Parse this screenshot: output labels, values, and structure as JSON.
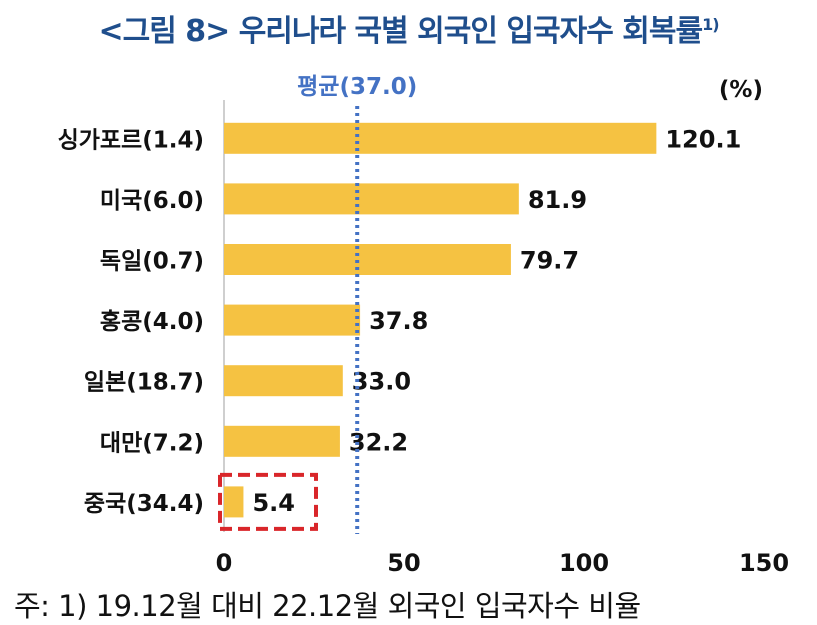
{
  "title": "<그림 8> 우리나라 국별 외국인 입국자수 회복률",
  "title_superscript": "1)",
  "note": "주: 1) 19.12월 대비 22.12월 외국인 입국자수 비율",
  "chart_data": {
    "type": "bar",
    "orientation": "horizontal",
    "unit_label": "(%)",
    "categories": [
      "싱가포르(1.4)",
      "미국(6.0)",
      "독일(0.7)",
      "홍콩(4.0)",
      "일본(18.7)",
      "대만(7.2)",
      "중국(34.4)"
    ],
    "values": [
      120.1,
      81.9,
      79.7,
      37.8,
      33.0,
      32.2,
      5.4
    ],
    "value_labels": [
      "120.1",
      "81.9",
      "79.7",
      "37.8",
      "33.0",
      "32.2",
      "5.4"
    ],
    "xlim": [
      0,
      150
    ],
    "xticks": [
      0,
      50,
      100,
      150
    ],
    "average": {
      "label": "평균(37.0)",
      "value": 37.0
    },
    "highlighted_category": "중국(34.4)",
    "grid": false,
    "colors": {
      "bar": "#f5c242",
      "average_line": "#4472c4",
      "highlight_box": "#d9262a",
      "title": "#1f4e8c"
    }
  }
}
